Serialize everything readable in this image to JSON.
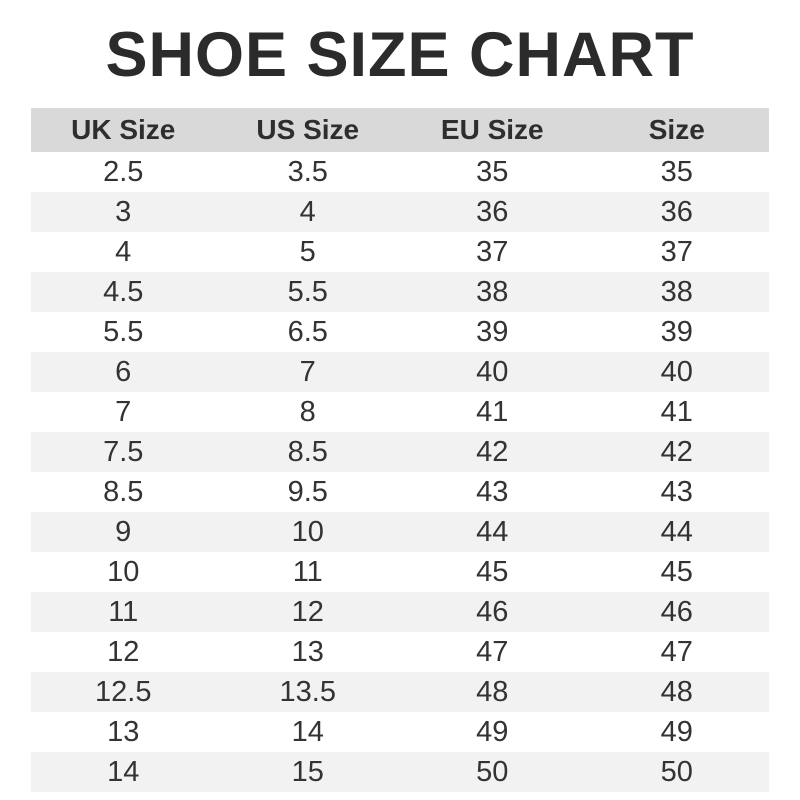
{
  "title": "SHOE SIZE CHART",
  "colors": {
    "header_bg": "#d9d9d9",
    "row_alt_bg": "#f2f2f2",
    "title_text": "#2b2b2b",
    "cell_text": "#333333",
    "page_bg": "#ffffff"
  },
  "chart_data": {
    "type": "table",
    "title": "SHOE SIZE CHART",
    "columns": [
      "UK Size",
      "US Size",
      "EU Size",
      "Size"
    ],
    "rows": [
      [
        "2.5",
        "3.5",
        "35",
        "35"
      ],
      [
        "3",
        "4",
        "36",
        "36"
      ],
      [
        "4",
        "5",
        "37",
        "37"
      ],
      [
        "4.5",
        "5.5",
        "38",
        "38"
      ],
      [
        "5.5",
        "6.5",
        "39",
        "39"
      ],
      [
        "6",
        "7",
        "40",
        "40"
      ],
      [
        "7",
        "8",
        "41",
        "41"
      ],
      [
        "7.5",
        "8.5",
        "42",
        "42"
      ],
      [
        "8.5",
        "9.5",
        "43",
        "43"
      ],
      [
        "9",
        "10",
        "44",
        "44"
      ],
      [
        "10",
        "11",
        "45",
        "45"
      ],
      [
        "11",
        "12",
        "46",
        "46"
      ],
      [
        "12",
        "13",
        "47",
        "47"
      ],
      [
        "12.5",
        "13.5",
        "48",
        "48"
      ],
      [
        "13",
        "14",
        "49",
        "49"
      ],
      [
        "14",
        "15",
        "50",
        "50"
      ]
    ],
    "layout": {
      "striped": true,
      "first_row_background": "white",
      "grid_lines": false
    }
  }
}
